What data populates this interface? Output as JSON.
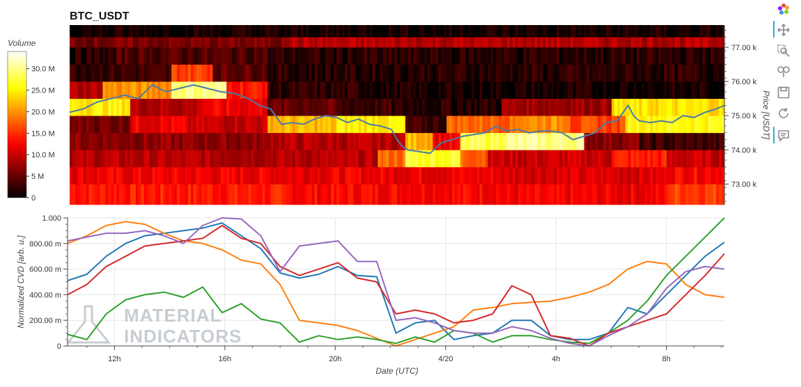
{
  "chart_data": [
    {
      "type": "heatmap",
      "title": "BTC_USDT",
      "colorbar": {
        "title": "Volume",
        "ticks": [
          {
            "value": 0,
            "label": "0"
          },
          {
            "value": 5000000,
            "label": "5 M"
          },
          {
            "value": 10000000,
            "label": "10.0 M"
          },
          {
            "value": 15000000,
            "label": "15.0 M"
          },
          {
            "value": 20000000,
            "label": "20.0 M"
          },
          {
            "value": 25000000,
            "label": "25.0 M"
          },
          {
            "value": 30000000,
            "label": "30.0 M"
          }
        ],
        "range": [
          0,
          34000000
        ]
      },
      "ylabel": "Price [USDT]",
      "y_ticks": [
        {
          "value": 73000,
          "label": "73.00 k"
        },
        {
          "value": 74000,
          "label": "74.00 k"
        },
        {
          "value": 75000,
          "label": "75.00 k"
        },
        {
          "value": 76000,
          "label": "76.00 k"
        },
        {
          "value": 77000,
          "label": "77.00 k"
        }
      ],
      "ylim": [
        72400,
        77650
      ],
      "price_bins": [
        72400,
        73000,
        73500,
        74000,
        74500,
        75000,
        75500,
        76000,
        76500,
        77000,
        77300,
        77650
      ],
      "time_range_hours": [
        10.3,
        34.1
      ],
      "volume_rows": [
        {
          "bin": 0,
          "segments": [
            [
              10.3,
              18.0,
              14
            ],
            [
              18.0,
              26.0,
              13
            ],
            [
              26.0,
              32.0,
              12
            ],
            [
              32.0,
              34.1,
              16
            ]
          ]
        },
        {
          "bin": 1,
          "segments": [
            [
              10.3,
              26.0,
              12
            ],
            [
              26.0,
              32.0,
              11
            ],
            [
              32.0,
              34.1,
              13
            ]
          ]
        },
        {
          "bin": 2,
          "segments": [
            [
              10.3,
              21.5,
              9
            ],
            [
              21.5,
              22.5,
              18
            ],
            [
              22.5,
              24.5,
              27
            ],
            [
              24.5,
              25.5,
              18
            ],
            [
              25.5,
              30.0,
              10
            ],
            [
              30.0,
              32.0,
              14
            ],
            [
              32.0,
              34.1,
              10
            ]
          ]
        },
        {
          "bin": 3,
          "segments": [
            [
              10.3,
              17.5,
              7
            ],
            [
              17.5,
              19.0,
              9
            ],
            [
              19.0,
              22.5,
              9
            ],
            [
              22.5,
              23.5,
              22
            ],
            [
              23.5,
              24.5,
              12
            ],
            [
              24.5,
              26.0,
              28
            ],
            [
              26.0,
              29.0,
              30
            ],
            [
              29.0,
              31.0,
              7
            ],
            [
              31.0,
              33.0,
              3
            ],
            [
              33.0,
              34.1,
              3
            ]
          ]
        },
        {
          "bin": 4,
          "segments": [
            [
              10.3,
              12.5,
              6
            ],
            [
              12.5,
              14.5,
              12
            ],
            [
              14.5,
              17.5,
              10
            ],
            [
              17.5,
              20.0,
              22
            ],
            [
              20.0,
              22.5,
              25
            ],
            [
              22.5,
              24.0,
              3
            ],
            [
              24.0,
              26.5,
              18
            ],
            [
              26.5,
              28.5,
              20
            ],
            [
              28.5,
              30.5,
              16
            ],
            [
              30.5,
              34.1,
              26
            ]
          ]
        },
        {
          "bin": 5,
          "segments": [
            [
              10.3,
              12.5,
              25
            ],
            [
              12.5,
              15.0,
              9
            ],
            [
              15.0,
              17.5,
              12
            ],
            [
              17.5,
              20.0,
              5
            ],
            [
              20.0,
              22.0,
              3
            ],
            [
              22.0,
              26.0,
              2
            ],
            [
              26.0,
              30.0,
              8
            ],
            [
              30.0,
              34.1,
              24
            ]
          ]
        },
        {
          "bin": 6,
          "segments": [
            [
              10.3,
              11.5,
              9
            ],
            [
              11.5,
              14.0,
              20
            ],
            [
              14.0,
              16.0,
              30
            ],
            [
              16.0,
              17.5,
              14
            ],
            [
              17.5,
              21.5,
              2
            ],
            [
              21.5,
              26.0,
              1
            ],
            [
              26.0,
              34.1,
              1
            ]
          ]
        },
        {
          "bin": 7,
          "segments": [
            [
              10.3,
              14.0,
              3
            ],
            [
              14.0,
              15.5,
              16
            ],
            [
              15.5,
              17.5,
              5
            ],
            [
              17.5,
              34.1,
              2
            ]
          ]
        },
        {
          "bin": 8,
          "segments": [
            [
              10.3,
              12.0,
              2
            ],
            [
              12.0,
              17.5,
              4
            ],
            [
              17.5,
              34.1,
              2
            ]
          ]
        },
        {
          "bin": 9,
          "segments": [
            [
              10.3,
              18.0,
              6
            ],
            [
              18.0,
              34.1,
              9
            ]
          ]
        },
        {
          "bin": 10,
          "segments": [
            [
              10.3,
              34.1,
              1
            ]
          ]
        }
      ],
      "price_line": {
        "x": [
          10.3,
          10.8,
          11.3,
          11.8,
          12.3,
          12.8,
          13.3,
          13.8,
          14.3,
          14.8,
          15.3,
          15.8,
          16.3,
          16.8,
          17.2,
          17.6,
          18.0,
          18.4,
          18.8,
          19.2,
          19.6,
          20.0,
          20.4,
          20.8,
          21.2,
          21.6,
          22.0,
          22.2,
          22.4,
          22.6,
          23.0,
          23.4,
          23.8,
          24.2,
          24.6,
          25.0,
          25.4,
          25.8,
          26.2,
          26.6,
          27.0,
          27.4,
          27.8,
          28.2,
          28.6,
          29.0,
          29.4,
          29.8,
          30.2,
          30.6,
          30.8,
          31.0,
          31.4,
          31.8,
          32.2,
          32.6,
          33.0,
          33.4,
          33.8,
          34.1
        ],
        "y": [
          75100,
          75200,
          75400,
          75500,
          75600,
          75500,
          75900,
          75700,
          75800,
          75900,
          75800,
          75700,
          75650,
          75500,
          75300,
          75200,
          74750,
          74800,
          74750,
          74900,
          75000,
          74950,
          74800,
          74900,
          74750,
          74700,
          74600,
          74300,
          74100,
          74000,
          73950,
          73900,
          74200,
          74300,
          74400,
          74450,
          74500,
          74700,
          74550,
          74600,
          74500,
          74550,
          74550,
          74500,
          74300,
          74400,
          74500,
          74800,
          74850,
          75300,
          75000,
          74850,
          74800,
          74850,
          74800,
          75000,
          74950,
          75100,
          75200,
          75300
        ],
        "color": "#4a7ba7"
      }
    },
    {
      "type": "line",
      "ylabel": "Normalized CVD [arb. u.]",
      "xlabel": "Date (UTC)",
      "ylim": [
        0,
        1.0
      ],
      "y_ticks": [
        {
          "value": 0,
          "label": "0"
        },
        {
          "value": 0.2,
          "label": "200.00 m"
        },
        {
          "value": 0.4,
          "label": "400.00 m"
        },
        {
          "value": 0.6,
          "label": "600.00 m"
        },
        {
          "value": 0.8,
          "label": "800.00 m"
        },
        {
          "value": 1.0,
          "label": "1.000"
        }
      ],
      "x_ticks": [
        {
          "value": 12,
          "label": "12h"
        },
        {
          "value": 16,
          "label": "16h"
        },
        {
          "value": 20,
          "label": "20h"
        },
        {
          "value": 24,
          "label": "4/20"
        },
        {
          "value": 28,
          "label": "4h"
        },
        {
          "value": 32,
          "label": "8h"
        }
      ],
      "xlim": [
        10.3,
        34.1
      ],
      "x": [
        10.3,
        11.0,
        11.7,
        12.4,
        13.1,
        13.8,
        14.5,
        15.2,
        15.9,
        16.6,
        17.3,
        18.0,
        18.7,
        19.4,
        20.1,
        20.8,
        21.5,
        22.2,
        22.9,
        23.6,
        24.3,
        25.0,
        25.7,
        26.4,
        27.1,
        27.8,
        28.5,
        29.2,
        29.9,
        30.6,
        31.3,
        32.0,
        32.7,
        33.4,
        34.1
      ],
      "series": [
        {
          "color": "#1f77b4",
          "values": [
            0.51,
            0.56,
            0.7,
            0.8,
            0.86,
            0.88,
            0.9,
            0.92,
            0.96,
            0.86,
            0.76,
            0.57,
            0.53,
            0.56,
            0.62,
            0.55,
            0.54,
            0.1,
            0.18,
            0.2,
            0.05,
            0.08,
            0.1,
            0.2,
            0.2,
            0.08,
            0.05,
            0.05,
            0.1,
            0.3,
            0.25,
            0.4,
            0.55,
            0.7,
            0.81
          ]
        },
        {
          "color": "#ff7f0e",
          "values": [
            0.8,
            0.86,
            0.94,
            0.97,
            0.95,
            0.88,
            0.82,
            0.8,
            0.75,
            0.67,
            0.64,
            0.48,
            0.2,
            0.18,
            0.16,
            0.12,
            0.06,
            0.0,
            0.05,
            0.1,
            0.15,
            0.28,
            0.3,
            0.33,
            0.34,
            0.35,
            0.38,
            0.42,
            0.48,
            0.6,
            0.66,
            0.64,
            0.48,
            0.4,
            0.38
          ]
        },
        {
          "color": "#2ca02c",
          "values": [
            0.09,
            0.05,
            0.25,
            0.36,
            0.4,
            0.42,
            0.38,
            0.46,
            0.26,
            0.33,
            0.21,
            0.18,
            0.03,
            0.08,
            0.05,
            0.07,
            0.05,
            0.02,
            0.07,
            0.03,
            0.12,
            0.1,
            0.03,
            0.08,
            0.08,
            0.05,
            0.03,
            0.02,
            0.1,
            0.2,
            0.35,
            0.55,
            0.7,
            0.85,
            1.0
          ]
        },
        {
          "color": "#d62728",
          "values": [
            0.4,
            0.48,
            0.62,
            0.7,
            0.78,
            0.8,
            0.82,
            0.84,
            0.94,
            0.84,
            0.8,
            0.62,
            0.55,
            0.6,
            0.65,
            0.53,
            0.5,
            0.25,
            0.28,
            0.25,
            0.18,
            0.2,
            0.25,
            0.47,
            0.4,
            0.08,
            0.06,
            0.0,
            0.1,
            0.15,
            0.2,
            0.25,
            0.4,
            0.55,
            0.72
          ]
        },
        {
          "color": "#9467bd",
          "values": [
            0.82,
            0.85,
            0.88,
            0.88,
            0.9,
            0.86,
            0.8,
            0.94,
            1.0,
            0.99,
            0.86,
            0.58,
            0.78,
            0.8,
            0.82,
            0.66,
            0.66,
            0.2,
            0.22,
            0.18,
            0.12,
            0.1,
            0.1,
            0.15,
            0.12,
            0.06,
            0.02,
            0.0,
            0.08,
            0.15,
            0.25,
            0.45,
            0.58,
            0.62,
            0.6
          ]
        }
      ]
    }
  ],
  "watermark": {
    "line1": "MATERIAL",
    "line2": "INDICATORS"
  },
  "toolbar": {
    "tools": [
      "bokeh-logo-icon",
      "pan-icon",
      "box-zoom-icon",
      "wheel-zoom-icon",
      "save-icon",
      "reset-icon",
      "hover-icon"
    ]
  }
}
